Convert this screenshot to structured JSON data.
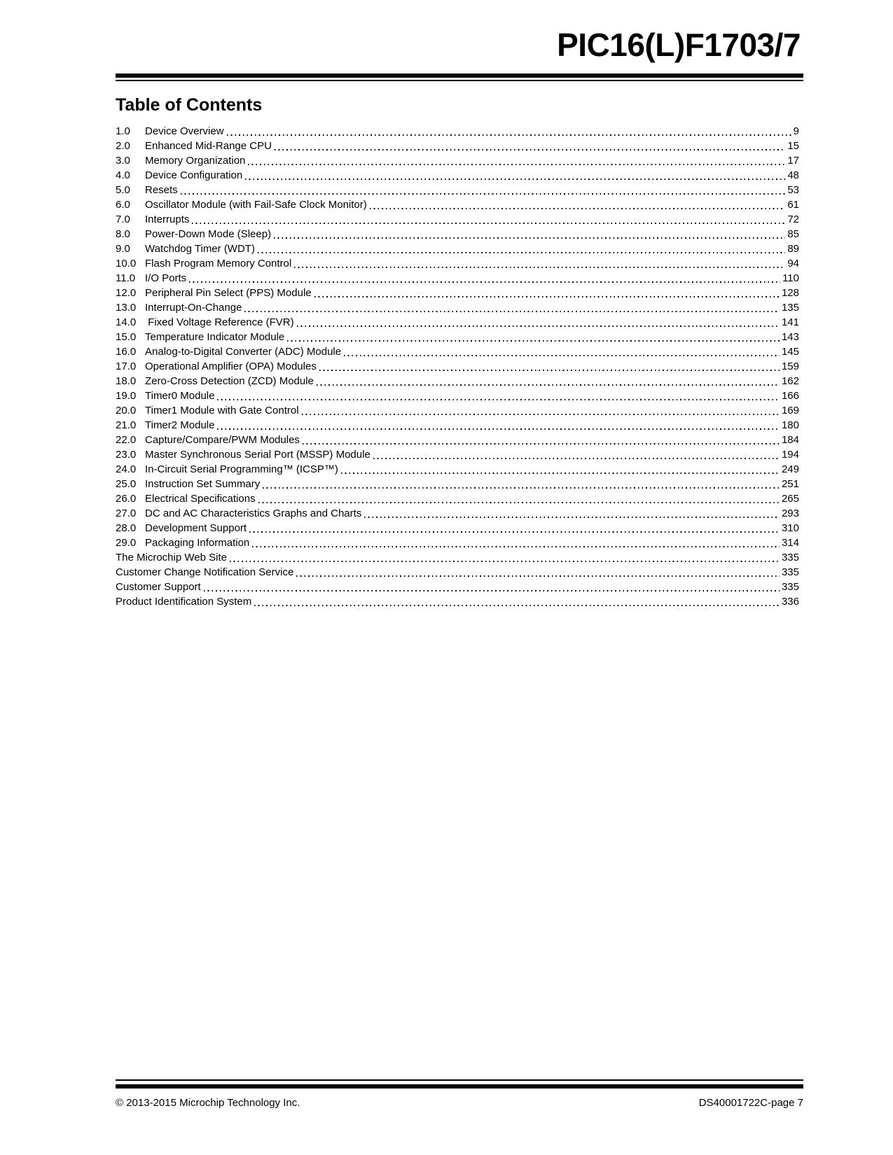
{
  "colors": {
    "text": "#000000",
    "background": "#ffffff"
  },
  "header": {
    "title": "PIC16(L)F1703/7"
  },
  "toc": {
    "heading": "Table of Contents",
    "entries": [
      {
        "num": "1.0",
        "title": "Device Overview",
        "page": "9"
      },
      {
        "num": "2.0",
        "title": "Enhanced Mid-Range CPU",
        "page": "15"
      },
      {
        "num": "3.0",
        "title": "Memory Organization",
        "page": "17"
      },
      {
        "num": "4.0",
        "title": "Device Configuration",
        "page": "48"
      },
      {
        "num": "5.0",
        "title": "Resets",
        "page": "53"
      },
      {
        "num": "6.0",
        "title": "Oscillator Module (with Fail-Safe Clock Monitor)",
        "page": "61"
      },
      {
        "num": "7.0",
        "title": "Interrupts",
        "page": "72"
      },
      {
        "num": "8.0",
        "title": "Power-Down Mode (Sleep)",
        "page": "85"
      },
      {
        "num": "9.0",
        "title": "Watchdog Timer (WDT)",
        "page": "89"
      },
      {
        "num": "10.0",
        "title": "Flash Program Memory Control",
        "page": "94"
      },
      {
        "num": "11.0",
        "title": "I/O Ports",
        "page": "110"
      },
      {
        "num": "12.0",
        "title": "Peripheral Pin Select (PPS) Module",
        "page": "128"
      },
      {
        "num": "13.0",
        "title": "Interrupt-On-Change",
        "page": "135"
      },
      {
        "num": "14.0",
        "title": " Fixed Voltage Reference (FVR)",
        "page": "141"
      },
      {
        "num": "15.0",
        "title": "Temperature Indicator Module",
        "page": "143"
      },
      {
        "num": "16.0",
        "title": "Analog-to-Digital Converter (ADC) Module",
        "page": "145"
      },
      {
        "num": "17.0",
        "title": "Operational Amplifier (OPA) Modules",
        "page": "159"
      },
      {
        "num": "18.0",
        "title": "Zero-Cross Detection (ZCD) Module",
        "page": "162"
      },
      {
        "num": "19.0",
        "title": "Timer0 Module",
        "page": "166"
      },
      {
        "num": "20.0",
        "title": "Timer1 Module with Gate Control",
        "page": "169"
      },
      {
        "num": "21.0",
        "title": "Timer2 Module",
        "page": "180"
      },
      {
        "num": "22.0",
        "title": "Capture/Compare/PWM Modules",
        "page": "184"
      },
      {
        "num": "23.0",
        "title": "Master Synchronous Serial Port (MSSP) Module",
        "page": "194"
      },
      {
        "num": "24.0",
        "title": "In-Circuit Serial Programming™ (ICSP™)",
        "page": "249"
      },
      {
        "num": "25.0",
        "title": "Instruction Set Summary",
        "page": "251"
      },
      {
        "num": "26.0",
        "title": "Electrical Specifications",
        "page": "265"
      },
      {
        "num": "27.0",
        "title": "DC and AC Characteristics Graphs and Charts",
        "page": "293"
      },
      {
        "num": "28.0",
        "title": "Development Support",
        "page": "310"
      },
      {
        "num": "29.0",
        "title": "Packaging Information",
        "page": "314"
      },
      {
        "num": "",
        "title": "The Microchip Web Site",
        "page": "335"
      },
      {
        "num": "",
        "title": "Customer Change Notification Service",
        "page": "335"
      },
      {
        "num": "",
        "title": "Customer Support",
        "page": "335"
      },
      {
        "num": "",
        "title": "Product Identification System",
        "page": "336"
      }
    ]
  },
  "footer": {
    "copyright": "© 2013-2015 Microchip Technology Inc.",
    "doc_id": "DS40001722C-page 7"
  }
}
